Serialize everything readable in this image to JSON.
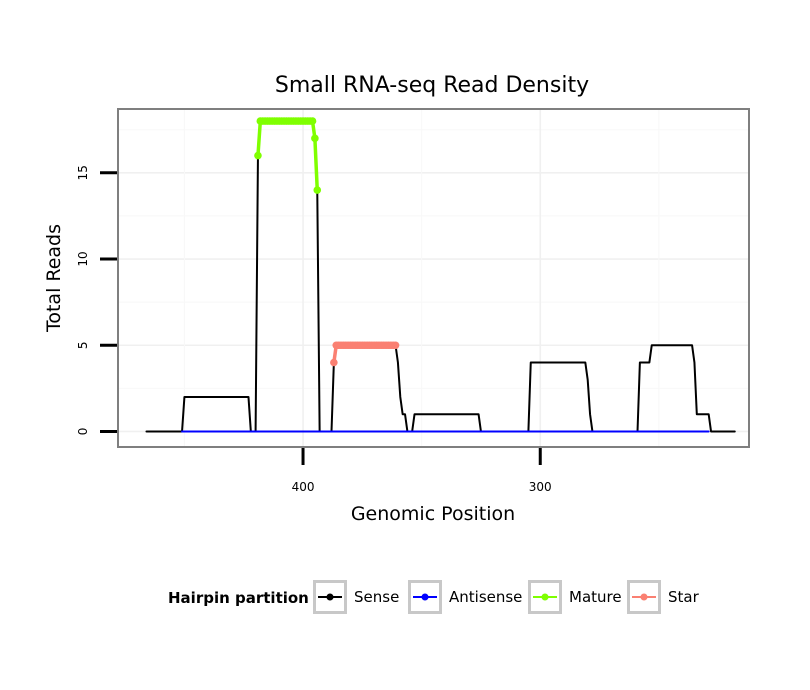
{
  "chart_data": {
    "type": "line",
    "title": "Small RNA-seq Read Density",
    "xlabel": "Genomic Position",
    "ylabel": "Total Reads",
    "x_reversed": true,
    "xlim": [
      478,
      212
    ],
    "ylim": [
      -0.9,
      18.7
    ],
    "x_ticks": [
      400,
      300
    ],
    "y_ticks": [
      0,
      5,
      10,
      15
    ],
    "legend": {
      "title": "Hairpin partition",
      "position": "bottom",
      "entries": [
        {
          "name": "Sense",
          "color": "#000000"
        },
        {
          "name": "Antisense",
          "color": "#0000ff"
        },
        {
          "name": "Mature",
          "color": "#7fff00"
        },
        {
          "name": "Star",
          "color": "#fa8072"
        }
      ]
    },
    "series": [
      {
        "name": "Sense",
        "color": "#000000",
        "points": [
          [
            466,
            0
          ],
          [
            451,
            0
          ],
          [
            450,
            2
          ],
          [
            423,
            2
          ],
          [
            422,
            0
          ],
          [
            420,
            0
          ],
          [
            419,
            16
          ],
          [
            418,
            18
          ],
          [
            396,
            18
          ],
          [
            395,
            17
          ],
          [
            394,
            14
          ],
          [
            393,
            0
          ],
          [
            388,
            0
          ],
          [
            387,
            4
          ],
          [
            386,
            5
          ],
          [
            361,
            5
          ],
          [
            360,
            4
          ],
          [
            359,
            2
          ],
          [
            358,
            1
          ],
          [
            357,
            1
          ],
          [
            356,
            0
          ],
          [
            354,
            0
          ],
          [
            353,
            1
          ],
          [
            326,
            1
          ],
          [
            325,
            0
          ],
          [
            305,
            0
          ],
          [
            304,
            4
          ],
          [
            281,
            4
          ],
          [
            280,
            3
          ],
          [
            279,
            1
          ],
          [
            278,
            0
          ],
          [
            259,
            0
          ],
          [
            258,
            4
          ],
          [
            254,
            4
          ],
          [
            253,
            5
          ],
          [
            236,
            5
          ],
          [
            235,
            4
          ],
          [
            234,
            1
          ],
          [
            229,
            1
          ],
          [
            228,
            0
          ],
          [
            218,
            0
          ]
        ]
      },
      {
        "name": "Antisense",
        "color": "#0000ff",
        "points": [
          [
            451,
            0
          ],
          [
            229,
            0
          ]
        ]
      },
      {
        "name": "Mature",
        "color": "#7fff00",
        "points": [
          [
            419,
            16
          ],
          [
            418,
            18
          ],
          [
            417,
            18
          ],
          [
            416,
            18
          ],
          [
            415,
            18
          ],
          [
            414,
            18
          ],
          [
            413,
            18
          ],
          [
            412,
            18
          ],
          [
            411,
            18
          ],
          [
            410,
            18
          ],
          [
            409,
            18
          ],
          [
            408,
            18
          ],
          [
            407,
            18
          ],
          [
            406,
            18
          ],
          [
            405,
            18
          ],
          [
            404,
            18
          ],
          [
            403,
            18
          ],
          [
            402,
            18
          ],
          [
            401,
            18
          ],
          [
            400,
            18
          ],
          [
            399,
            18
          ],
          [
            398,
            18
          ],
          [
            397,
            18
          ],
          [
            396,
            18
          ],
          [
            395,
            17
          ],
          [
            394,
            14
          ]
        ]
      },
      {
        "name": "Star",
        "color": "#fa8072",
        "points": [
          [
            387,
            4
          ],
          [
            386,
            5
          ],
          [
            385,
            5
          ],
          [
            384,
            5
          ],
          [
            383,
            5
          ],
          [
            382,
            5
          ],
          [
            381,
            5
          ],
          [
            380,
            5
          ],
          [
            379,
            5
          ],
          [
            378,
            5
          ],
          [
            377,
            5
          ],
          [
            376,
            5
          ],
          [
            375,
            5
          ],
          [
            374,
            5
          ],
          [
            373,
            5
          ],
          [
            372,
            5
          ],
          [
            371,
            5
          ],
          [
            370,
            5
          ],
          [
            369,
            5
          ],
          [
            368,
            5
          ],
          [
            367,
            5
          ],
          [
            366,
            5
          ],
          [
            365,
            5
          ],
          [
            364,
            5
          ],
          [
            363,
            5
          ],
          [
            362,
            5
          ],
          [
            361,
            5
          ]
        ]
      }
    ]
  }
}
